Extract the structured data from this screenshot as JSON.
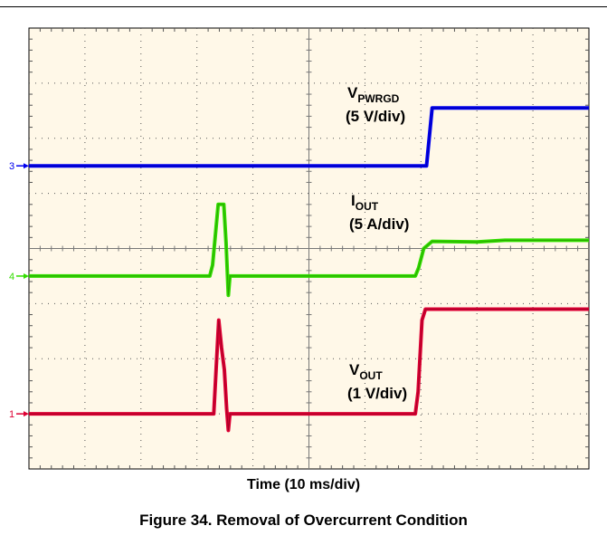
{
  "chart_data": {
    "type": "line",
    "title": "",
    "xlabel": "Time (10 ms/div)",
    "ylabel": "",
    "x_divisions": 10,
    "y_divisions": 8,
    "x_unit": "ms",
    "x_per_div": 10,
    "grid": true,
    "background": "#fff8e8",
    "series": [
      {
        "name": "V_PWRGD",
        "label_main": "V",
        "label_sub": "PWRGD",
        "scale": "(5 V/div)",
        "channel": "3",
        "color": "#0000ee",
        "units": "V",
        "per_div": 5,
        "baseline_div": 5.5,
        "points": [
          [
            0,
            0
          ],
          [
            71,
            0
          ],
          [
            72,
            1.05
          ],
          [
            100,
            1.05
          ]
        ]
      },
      {
        "name": "I_OUT",
        "label_main": "I",
        "label_sub": "OUT",
        "scale": "(5 A/div)",
        "channel": "4",
        "color": "#33dd00",
        "units": "A",
        "per_div": 5,
        "baseline_div": 3.5,
        "points": [
          [
            0,
            0
          ],
          [
            32.3,
            0
          ],
          [
            32.8,
            0.2
          ],
          [
            33.8,
            1.3
          ],
          [
            34.8,
            1.3
          ],
          [
            35.2,
            0.6
          ],
          [
            35.6,
            -0.35
          ],
          [
            35.9,
            0
          ],
          [
            69,
            0
          ],
          [
            69.6,
            0.15
          ],
          [
            70.5,
            0.5
          ],
          [
            72,
            0.63
          ],
          [
            80,
            0.62
          ],
          [
            85,
            0.65
          ],
          [
            100,
            0.65
          ]
        ]
      },
      {
        "name": "V_OUT",
        "label_main": "V",
        "label_sub": "OUT",
        "scale": "(1 V/div)",
        "channel": "1",
        "color": "#dd0033",
        "units": "V",
        "per_div": 1,
        "baseline_div": 1.0,
        "points": [
          [
            0,
            0
          ],
          [
            33,
            0
          ],
          [
            33.4,
            0.75
          ],
          [
            33.9,
            1.7
          ],
          [
            34.4,
            1.2
          ],
          [
            34.9,
            0.8
          ],
          [
            35.3,
            0.1
          ],
          [
            35.6,
            -0.3
          ],
          [
            35.9,
            0
          ],
          [
            69,
            0
          ],
          [
            69.5,
            0.4
          ],
          [
            70.2,
            1.7
          ],
          [
            70.8,
            1.9
          ],
          [
            100,
            1.9
          ]
        ]
      }
    ]
  },
  "caption": "Figure 34. Removal of Overcurrent Condition"
}
